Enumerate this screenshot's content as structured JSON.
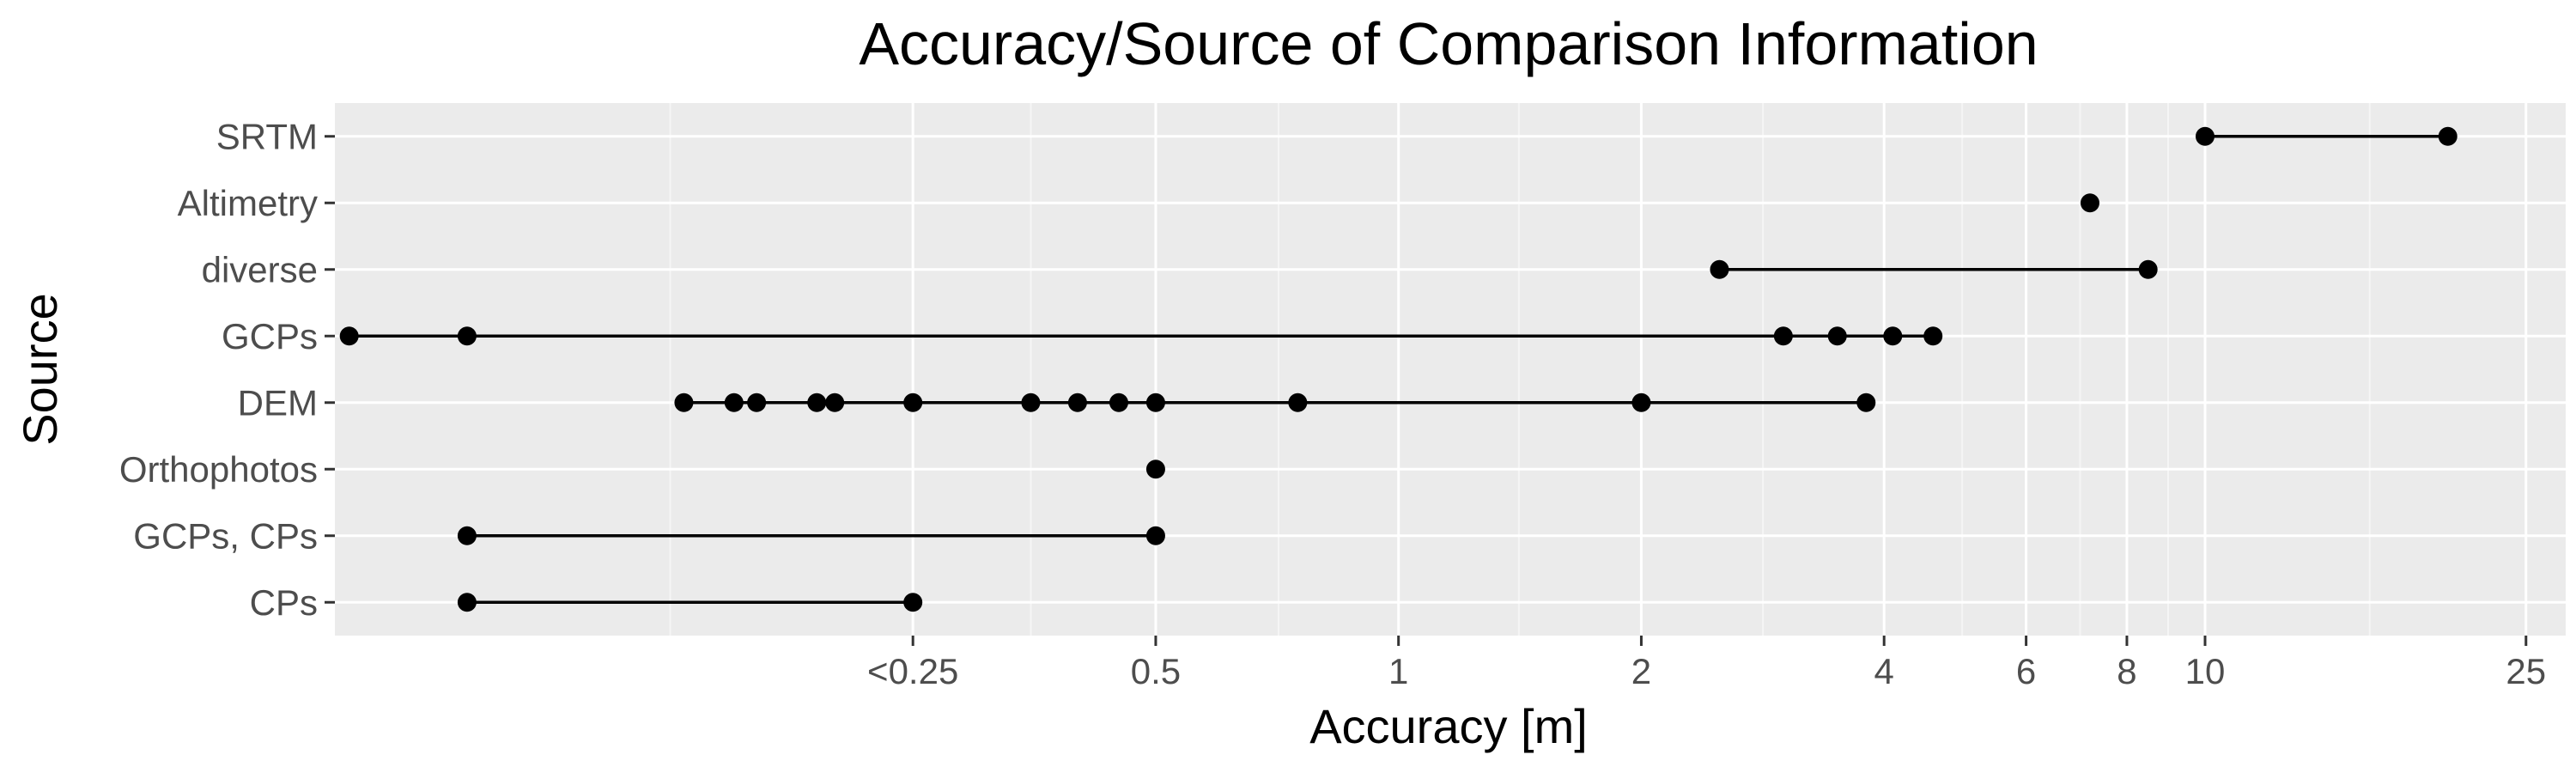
{
  "chart_data": {
    "type": "scatter",
    "title": "Accuracy/Source of Comparison Information",
    "xlabel": "Accuracy [m]",
    "ylabel": "Source",
    "x_scale": "log",
    "xlim": [
      0.048,
      28
    ],
    "grid": true,
    "legend": "none",
    "x_ticks": [
      {
        "value": 0.25,
        "label": "<0.25"
      },
      {
        "value": 0.5,
        "label": "0.5"
      },
      {
        "value": 1,
        "label": "1"
      },
      {
        "value": 2,
        "label": "2"
      },
      {
        "value": 4,
        "label": "4"
      },
      {
        "value": 6,
        "label": "6"
      },
      {
        "value": 8,
        "label": "8"
      },
      {
        "value": 10,
        "label": "10"
      },
      {
        "value": 25,
        "label": "25"
      }
    ],
    "x_minor_ticks": [
      0.125,
      0.35,
      0.71,
      1.41,
      2.83,
      5,
      7,
      9,
      16
    ],
    "categories": [
      "SRTM",
      "Altimetry",
      "diverse",
      "GCPs",
      "DEM",
      "Orthophotos",
      "GCPs, CPs",
      "CPs"
    ],
    "series": [
      {
        "category": "SRTM",
        "x": [
          10,
          20
        ]
      },
      {
        "category": "Altimetry",
        "x": [
          7.2
        ]
      },
      {
        "category": "diverse",
        "x": [
          2.5,
          8.5
        ]
      },
      {
        "category": "GCPs",
        "x": [
          0.05,
          0.07,
          3,
          3.5,
          4.1,
          4.6
        ]
      },
      {
        "category": "DEM",
        "x": [
          0.13,
          0.15,
          0.16,
          0.19,
          0.2,
          0.25,
          0.35,
          0.4,
          0.45,
          0.5,
          0.75,
          2,
          3.8
        ]
      },
      {
        "category": "Orthophotos",
        "x": [
          0.5
        ]
      },
      {
        "category": "GCPs, CPs",
        "x": [
          0.07,
          0.5
        ]
      },
      {
        "category": "CPs",
        "x": [
          0.07,
          0.25
        ]
      }
    ],
    "colors": {
      "panel": "#ebebeb",
      "grid_major": "#ffffff",
      "grid_minor": "#f5f5f5",
      "point": "#000000",
      "line": "#000000",
      "tick_text": "#4d4d4d",
      "tick_mark": "#333333"
    }
  }
}
